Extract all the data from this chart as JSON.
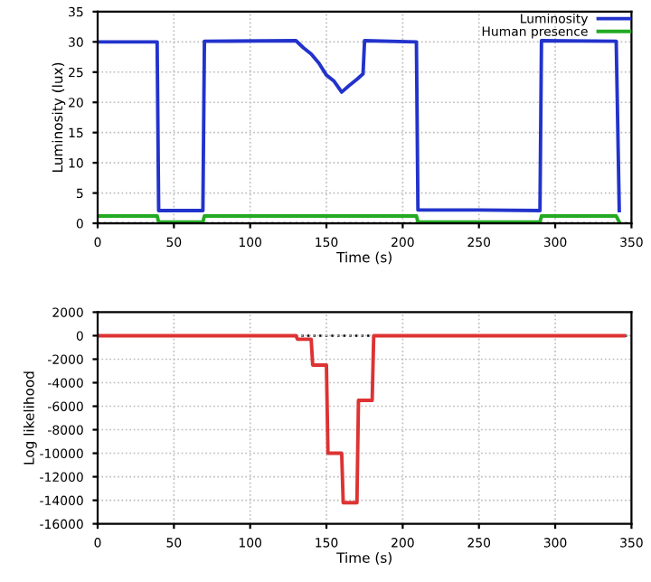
{
  "chart_data": [
    {
      "type": "line",
      "xlabel": "Time (s)",
      "ylabel": "Luminosity (lux)",
      "xlim": [
        0,
        350
      ],
      "ylim": [
        0,
        35
      ],
      "xticks": [
        0,
        50,
        100,
        150,
        200,
        250,
        300,
        350
      ],
      "yticks": [
        0,
        5,
        10,
        15,
        20,
        25,
        30,
        35
      ],
      "grid": true,
      "legend": "top right",
      "marker": "none",
      "line_style": "solid",
      "ref_lines": [
        {
          "axis": "y",
          "value": 0,
          "color": "#000000",
          "line_style": "dotted"
        }
      ],
      "series": [
        {
          "name": "Luminosity",
          "color": "#2233cc",
          "x": [
            0,
            39,
            40,
            69,
            70,
            130,
            135,
            140,
            145,
            150,
            155,
            160,
            165,
            170,
            174,
            175,
            209,
            210,
            250,
            290,
            291,
            340,
            342
          ],
          "values": [
            30,
            30,
            2.1,
            2.1,
            30.1,
            30.2,
            29,
            28,
            26.5,
            24.5,
            23.5,
            21.7,
            22.8,
            23.8,
            24.7,
            30.2,
            30,
            2.2,
            2.2,
            2.1,
            30.2,
            30.1,
            2.1
          ]
        },
        {
          "name": "Human presence",
          "color": "#22aa22",
          "x": [
            0,
            39,
            40,
            69,
            70,
            209,
            210,
            290,
            291,
            340,
            342
          ],
          "values": [
            1.2,
            1.2,
            0.2,
            0.2,
            1.2,
            1.2,
            0.2,
            0.2,
            1.2,
            1.2,
            0.2
          ]
        }
      ]
    },
    {
      "type": "line",
      "xlabel": "Time (s)",
      "ylabel": "Log likelihood",
      "xlim": [
        0,
        350
      ],
      "ylim": [
        -16000,
        2000
      ],
      "xticks": [
        0,
        50,
        100,
        150,
        200,
        250,
        300,
        350
      ],
      "yticks": [
        -16000,
        -14000,
        -12000,
        -10000,
        -8000,
        -6000,
        -4000,
        -2000,
        0,
        2000
      ],
      "grid": true,
      "marker": "none",
      "line_style": "solid",
      "ref_lines": [
        {
          "axis": "y",
          "value": 0,
          "color": "#000000",
          "line_style": "dotted"
        }
      ],
      "series": [
        {
          "color": "#dd3333",
          "x": [
            0,
            130,
            131,
            140,
            141,
            150,
            151,
            160,
            161,
            170,
            171,
            180,
            181,
            345
          ],
          "values": [
            0,
            0,
            -300,
            -300,
            -2500,
            -2500,
            -10000,
            -10000,
            -14200,
            -14200,
            -5500,
            -5500,
            0,
            0
          ]
        }
      ]
    }
  ]
}
